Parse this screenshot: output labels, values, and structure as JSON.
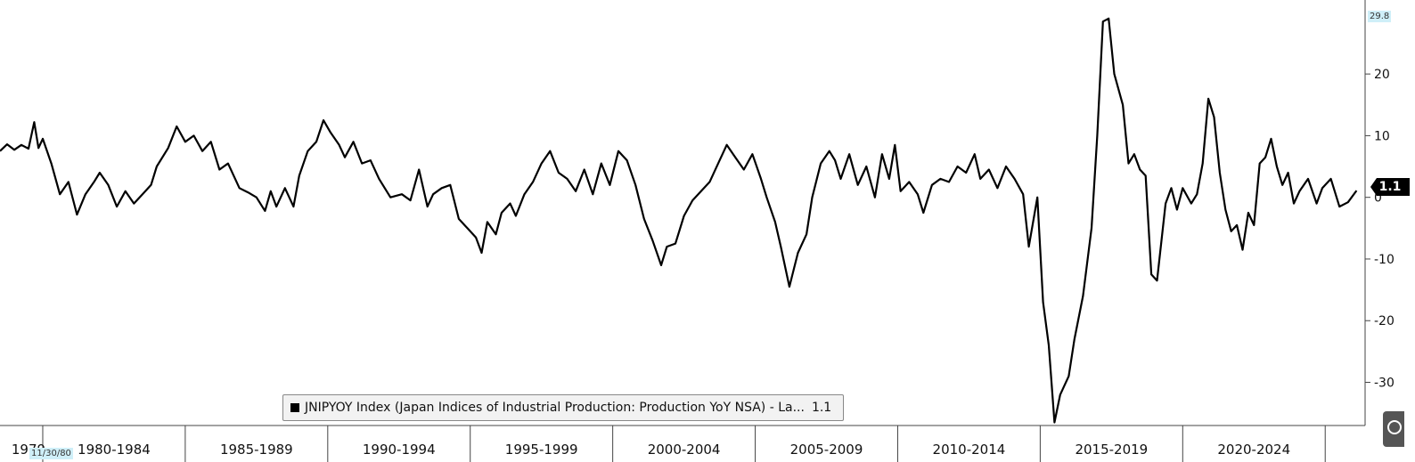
{
  "chart_data": {
    "type": "line",
    "legend": {
      "label": "JNIPYOY Index (Japan Indices of Industrial Production: Production YoY NSA) - La...",
      "last_value": "1.1"
    },
    "badges": {
      "start_date": "11/30/80",
      "axis_max": "29.8",
      "last_value": "1.1"
    },
    "x_axis": {
      "range": [
        1978.5,
        2026.4
      ],
      "labels": [
        {
          "label": "1979",
          "center": 1979.5
        },
        {
          "label": "1980-1984",
          "center": 1982.5
        },
        {
          "label": "1985-1989",
          "center": 1987.5
        },
        {
          "label": "1990-1994",
          "center": 1992.5
        },
        {
          "label": "1995-1999",
          "center": 1997.5
        },
        {
          "label": "2000-2004",
          "center": 2002.5
        },
        {
          "label": "2005-2009",
          "center": 2007.5
        },
        {
          "label": "2010-2014",
          "center": 2012.5
        },
        {
          "label": "2015-2019",
          "center": 2017.5
        },
        {
          "label": "2020-2024",
          "center": 2022.5
        }
      ],
      "dividers": [
        1980,
        1985,
        1990,
        1995,
        2000,
        2005,
        2010,
        2015,
        2020,
        2025
      ]
    },
    "y_axis": {
      "range": [
        -37,
        32
      ],
      "ticks": [
        20,
        10,
        0,
        -10,
        -20,
        -30
      ],
      "tick_labels": [
        "20",
        "10",
        "0",
        "-10",
        "-20",
        "-30"
      ],
      "side": "right"
    },
    "series": [
      {
        "color": "#000000",
        "points": [
          [
            1978.5,
            7.5
          ],
          [
            1978.75,
            8.6
          ],
          [
            1979.0,
            7.7
          ],
          [
            1979.25,
            8.5
          ],
          [
            1979.5,
            7.9
          ],
          [
            1979.7,
            12.2
          ],
          [
            1979.85,
            8.0
          ],
          [
            1980.0,
            9.5
          ],
          [
            1980.3,
            5.5
          ],
          [
            1980.6,
            0.5
          ],
          [
            1980.9,
            2.5
          ],
          [
            1981.2,
            -2.8
          ],
          [
            1981.5,
            0.5
          ],
          [
            1981.8,
            2.5
          ],
          [
            1982.0,
            4.0
          ],
          [
            1982.3,
            2.0
          ],
          [
            1982.6,
            -1.5
          ],
          [
            1982.9,
            1.0
          ],
          [
            1983.2,
            -1.0
          ],
          [
            1983.5,
            0.5
          ],
          [
            1983.8,
            2.0
          ],
          [
            1984.0,
            5.0
          ],
          [
            1984.4,
            8.0
          ],
          [
            1984.7,
            11.5
          ],
          [
            1985.0,
            9.0
          ],
          [
            1985.3,
            10.0
          ],
          [
            1985.6,
            7.5
          ],
          [
            1985.9,
            9.0
          ],
          [
            1986.2,
            4.5
          ],
          [
            1986.5,
            5.5
          ],
          [
            1986.9,
            1.5
          ],
          [
            1987.2,
            0.8
          ],
          [
            1987.5,
            0.0
          ],
          [
            1987.8,
            -2.2
          ],
          [
            1988.0,
            1.0
          ],
          [
            1988.2,
            -1.5
          ],
          [
            1988.5,
            1.5
          ],
          [
            1988.8,
            -1.5
          ],
          [
            1989.0,
            3.5
          ],
          [
            1989.3,
            7.5
          ],
          [
            1989.6,
            9.0
          ],
          [
            1989.85,
            12.5
          ],
          [
            1990.1,
            10.5
          ],
          [
            1990.4,
            8.5
          ],
          [
            1990.6,
            6.5
          ],
          [
            1990.9,
            9.0
          ],
          [
            1991.2,
            5.5
          ],
          [
            1991.5,
            6.0
          ],
          [
            1991.8,
            3.0
          ],
          [
            1992.2,
            0.0
          ],
          [
            1992.6,
            0.5
          ],
          [
            1992.9,
            -0.5
          ],
          [
            1993.2,
            4.5
          ],
          [
            1993.5,
            -1.5
          ],
          [
            1993.7,
            0.5
          ],
          [
            1994.0,
            1.5
          ],
          [
            1994.3,
            2.0
          ],
          [
            1994.6,
            -3.5
          ],
          [
            1994.9,
            -5.0
          ],
          [
            1995.2,
            -6.5
          ],
          [
            1995.4,
            -9.0
          ],
          [
            1995.6,
            -4.0
          ],
          [
            1995.9,
            -6.0
          ],
          [
            1996.1,
            -2.5
          ],
          [
            1996.4,
            -1.0
          ],
          [
            1996.6,
            -3.0
          ],
          [
            1996.9,
            0.5
          ],
          [
            1997.2,
            2.5
          ],
          [
            1997.5,
            5.5
          ],
          [
            1997.8,
            7.5
          ],
          [
            1998.1,
            4.0
          ],
          [
            1998.4,
            3.0
          ],
          [
            1998.7,
            1.0
          ],
          [
            1999.0,
            4.5
          ],
          [
            1999.3,
            0.5
          ],
          [
            1999.6,
            5.5
          ],
          [
            1999.9,
            2.0
          ],
          [
            2000.2,
            7.5
          ],
          [
            2000.5,
            6.0
          ],
          [
            2000.8,
            2.0
          ],
          [
            2001.1,
            -3.5
          ],
          [
            2001.4,
            -7.0
          ],
          [
            2001.7,
            -11.0
          ],
          [
            2001.9,
            -8.0
          ],
          [
            2002.2,
            -7.5
          ],
          [
            2002.5,
            -3.0
          ],
          [
            2002.8,
            -0.5
          ],
          [
            2003.1,
            1.0
          ],
          [
            2003.4,
            2.5
          ],
          [
            2003.7,
            5.5
          ],
          [
            2004.0,
            8.5
          ],
          [
            2004.3,
            6.5
          ],
          [
            2004.6,
            4.5
          ],
          [
            2004.9,
            7.0
          ],
          [
            2005.2,
            3.0
          ],
          [
            2005.4,
            0.0
          ],
          [
            2005.7,
            -4.0
          ],
          [
            2005.9,
            -8.0
          ],
          [
            2006.2,
            -14.5
          ],
          [
            2006.5,
            -9.0
          ],
          [
            2006.8,
            -6.0
          ],
          [
            2007.0,
            0.0
          ],
          [
            2007.3,
            5.5
          ],
          [
            2007.6,
            7.5
          ],
          [
            2007.8,
            6.0
          ],
          [
            2008.0,
            3.0
          ],
          [
            2008.3,
            7.0
          ],
          [
            2008.6,
            2.0
          ],
          [
            2008.9,
            5.0
          ],
          [
            2009.2,
            0.0
          ],
          [
            2009.45,
            7.0
          ],
          [
            2009.7,
            3.0
          ],
          [
            2009.9,
            8.5
          ],
          [
            2010.1,
            1.0
          ],
          [
            2010.4,
            2.5
          ],
          [
            2010.7,
            0.5
          ],
          [
            2010.9,
            -2.5
          ],
          [
            2011.2,
            2.0
          ],
          [
            2011.5,
            3.0
          ],
          [
            2011.8,
            2.5
          ],
          [
            2012.1,
            5.0
          ],
          [
            2012.4,
            4.0
          ],
          [
            2012.7,
            7.0
          ],
          [
            2012.9,
            3.0
          ],
          [
            2013.2,
            4.5
          ],
          [
            2013.5,
            1.5
          ],
          [
            2013.8,
            5.0
          ],
          [
            2014.1,
            3.0
          ],
          [
            2014.4,
            0.5
          ],
          [
            2014.6,
            -8.0
          ],
          [
            2014.9,
            0.0
          ],
          [
            2015.1,
            -17.0
          ],
          [
            2015.3,
            -24.0
          ],
          [
            2015.5,
            -36.5
          ],
          [
            2015.7,
            -32.0
          ],
          [
            2016.0,
            -29.0
          ],
          [
            2016.2,
            -23.0
          ],
          [
            2016.5,
            -16.0
          ],
          [
            2016.8,
            -5.0
          ],
          [
            2017.0,
            10.0
          ],
          [
            2017.2,
            28.5
          ],
          [
            2017.4,
            29.0
          ],
          [
            2017.6,
            20.0
          ],
          [
            2017.9,
            15.0
          ],
          [
            2018.1,
            5.5
          ],
          [
            2018.3,
            7.0
          ],
          [
            2018.5,
            4.5
          ],
          [
            2018.7,
            3.5
          ],
          [
            2018.9,
            -12.5
          ],
          [
            2019.1,
            -13.5
          ],
          [
            2019.4,
            -1.0
          ],
          [
            2019.6,
            1.5
          ],
          [
            2019.8,
            -2.0
          ],
          [
            2020.0,
            1.5
          ],
          [
            2020.3,
            -1.0
          ],
          [
            2020.5,
            0.5
          ],
          [
            2020.7,
            5.5
          ],
          [
            2020.9,
            16.0
          ],
          [
            2021.1,
            13.0
          ],
          [
            2021.3,
            4.0
          ],
          [
            2021.5,
            -2.0
          ],
          [
            2021.7,
            -5.5
          ],
          [
            2021.9,
            -4.5
          ],
          [
            2022.1,
            -8.5
          ],
          [
            2022.3,
            -2.5
          ],
          [
            2022.5,
            -4.5
          ],
          [
            2022.7,
            5.5
          ],
          [
            2022.9,
            6.5
          ],
          [
            2023.1,
            9.5
          ],
          [
            2023.3,
            5.0
          ],
          [
            2023.5,
            2.0
          ],
          [
            2023.7,
            4.0
          ],
          [
            2023.9,
            -1.0
          ],
          [
            2024.1,
            1.0
          ],
          [
            2024.4,
            3.0
          ],
          [
            2024.7,
            -1.0
          ],
          [
            2024.9,
            1.5
          ],
          [
            2025.2,
            3.0
          ],
          [
            2025.5,
            -1.5
          ],
          [
            2025.8,
            -0.8
          ],
          [
            2026.1,
            1.1
          ]
        ]
      }
    ]
  }
}
